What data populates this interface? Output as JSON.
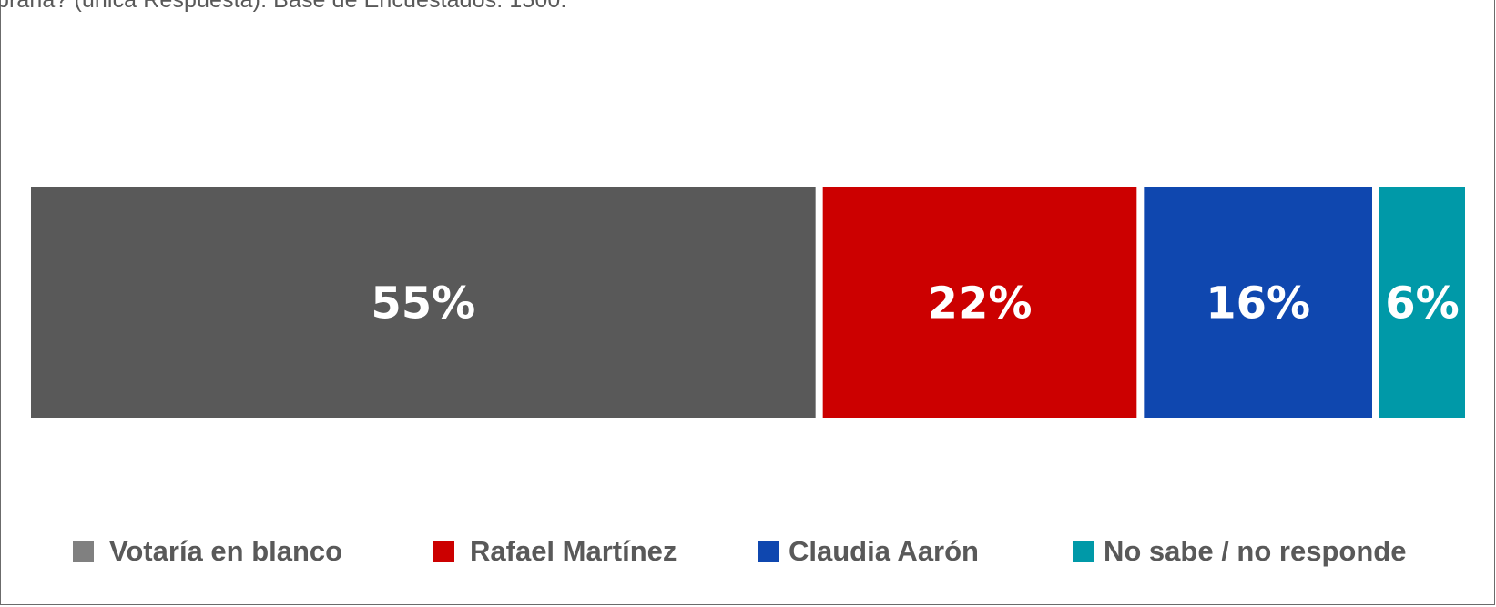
{
  "caption": "brana? (única Respuesta).  Base de Encuestados: 1500.",
  "chart_data": {
    "type": "bar",
    "orientation": "horizontal-stacked-100",
    "series": [
      {
        "name": "Votaría en blanco",
        "value": 55,
        "label": "55%",
        "color": "#595959"
      },
      {
        "name": "Rafael Martínez",
        "value": 22,
        "label": "22%",
        "color": "#cc0000"
      },
      {
        "name": "Claudia Aarón",
        "value": 16,
        "label": "16%",
        "color": "#0f47af"
      },
      {
        "name": "No sabe / no responde",
        "value": 6,
        "label": "6%",
        "color": "#0099a8"
      }
    ],
    "legend_position": "bottom",
    "legend_swatch_colors": [
      "#808080",
      "#cc0000",
      "#0f47af",
      "#0099a8"
    ]
  }
}
